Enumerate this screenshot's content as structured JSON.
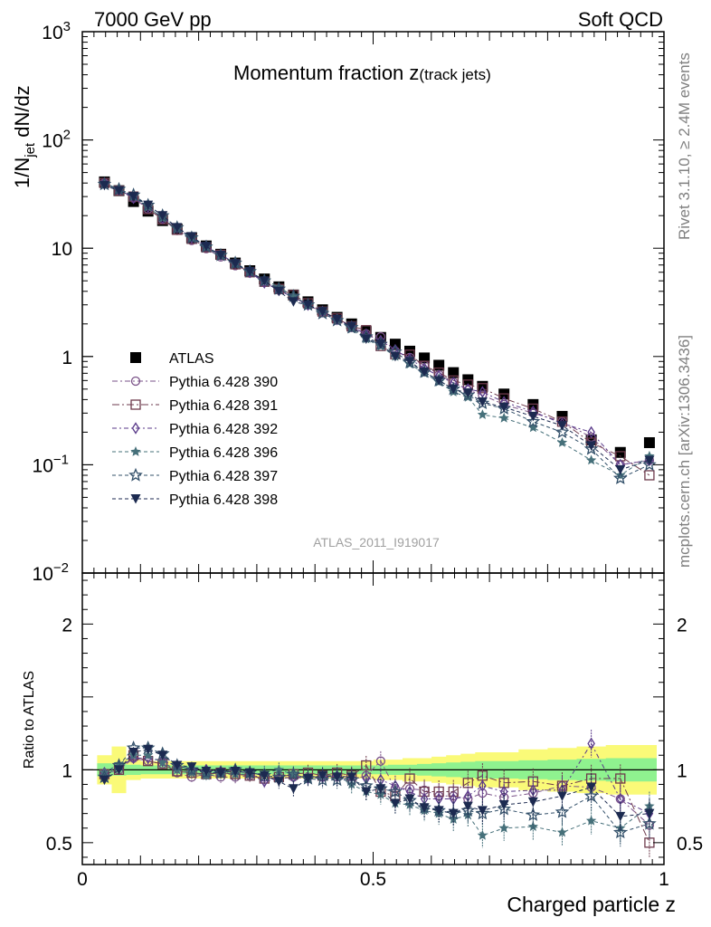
{
  "header": {
    "left": "7000 GeV pp",
    "right": "Soft QCD"
  },
  "side_text": {
    "rivet": "Rivet 3.1.10, ≥ 2.4M events",
    "mcplots": "mcplots.cern.ch [arXiv:1306.3436]"
  },
  "analysis_id": "ATLAS_2011_I919017",
  "chart_data": [
    {
      "type": "scatter",
      "panel": "main",
      "title_main": "Momentum fraction z",
      "title_sub": "(track jets)",
      "ylabel": "1/N",
      "ylabel_sub": "jet",
      "ylabel_tail": " dN/dz",
      "xlabel": "Charged particle z",
      "yscale": "log",
      "xlim": [
        0,
        1.0
      ],
      "ylim": [
        0.01,
        1000
      ],
      "y_ticks": [
        {
          "value": 1000,
          "base": "10",
          "exp": "3"
        },
        {
          "value": 100,
          "base": "10",
          "exp": "2"
        },
        {
          "value": 10,
          "base": "10",
          "exp": ""
        },
        {
          "value": 1,
          "base": "1",
          "exp": ""
        },
        {
          "value": 0.1,
          "base": "10",
          "exp": "−1"
        },
        {
          "value": 0.01,
          "base": "10",
          "exp": "−2"
        }
      ],
      "legend_position": "left-middle",
      "x": [
        0.038,
        0.063,
        0.088,
        0.113,
        0.138,
        0.163,
        0.188,
        0.213,
        0.238,
        0.263,
        0.288,
        0.313,
        0.338,
        0.363,
        0.388,
        0.413,
        0.438,
        0.463,
        0.488,
        0.513,
        0.538,
        0.563,
        0.588,
        0.613,
        0.638,
        0.663,
        0.688,
        0.725,
        0.775,
        0.825,
        0.875,
        0.925,
        0.975
      ],
      "series": [
        {
          "name": "ATLAS",
          "marker": "filled-square",
          "color": "#000000",
          "dash": "",
          "values": [
            41,
            34,
            27,
            22,
            18,
            15,
            12.5,
            10.5,
            8.8,
            7.3,
            6.2,
            5.2,
            4.4,
            3.7,
            3.2,
            2.7,
            2.3,
            2.0,
            1.7,
            1.5,
            1.3,
            1.12,
            0.97,
            0.83,
            0.71,
            0.61,
            0.53,
            0.45,
            0.36,
            0.28,
            0.17,
            0.13,
            0.16
          ]
        },
        {
          "name": "Pythia 6.428 390",
          "marker": "open-circle",
          "color": "#7a5288",
          "dash": "6 3 2 3",
          "values": [
            40,
            34,
            29,
            23,
            18.5,
            14.6,
            11.8,
            9.9,
            8.3,
            6.9,
            5.9,
            4.9,
            4.1,
            3.5,
            3.0,
            2.55,
            2.18,
            1.85,
            1.62,
            1.52,
            1.12,
            0.98,
            0.83,
            0.68,
            0.58,
            0.49,
            0.44,
            0.36,
            0.3,
            0.25,
            0.18,
            0.1,
            0.11
          ]
        },
        {
          "name": "Pythia 6.428 391",
          "marker": "open-square",
          "color": "#6e3a4c",
          "dash": "8 3 2 3",
          "values": [
            40,
            34,
            30,
            23,
            18.5,
            14.8,
            12.2,
            10.2,
            8.7,
            7.1,
            6.0,
            4.9,
            4.2,
            3.7,
            3.1,
            2.6,
            2.25,
            1.9,
            1.75,
            1.25,
            1.05,
            1.04,
            0.82,
            0.71,
            0.6,
            0.55,
            0.51,
            0.41,
            0.33,
            0.25,
            0.16,
            0.12,
            0.08
          ]
        },
        {
          "name": "Pythia 6.428 392",
          "marker": "open-diamond",
          "color": "#5a3a8a",
          "dash": "5 3 2 3",
          "values": [
            40,
            35,
            29,
            24,
            19,
            15.5,
            12.5,
            10.5,
            8.7,
            7.3,
            6.0,
            4.8,
            4.1,
            3.5,
            3.0,
            2.6,
            2.2,
            1.9,
            1.6,
            1.4,
            1.15,
            0.95,
            0.78,
            0.66,
            0.57,
            0.5,
            0.47,
            0.38,
            0.31,
            0.24,
            0.2,
            0.1,
            0.11
          ]
        },
        {
          "name": "Pythia 6.428 396",
          "marker": "filled-star",
          "color": "#46707a",
          "dash": "4 3",
          "values": [
            40,
            35,
            30,
            24,
            19,
            15,
            12.3,
            10.1,
            8.5,
            7.1,
            6.0,
            5.1,
            4.4,
            3.6,
            3.0,
            2.6,
            2.2,
            1.8,
            1.45,
            1.24,
            1.0,
            0.85,
            0.7,
            0.58,
            0.47,
            0.42,
            0.29,
            0.27,
            0.22,
            0.16,
            0.11,
            0.08,
            0.12
          ]
        },
        {
          "name": "Pythia 6.428 397",
          "marker": "open-star",
          "color": "#33506a",
          "dash": "4 3",
          "values": [
            39,
            35,
            31,
            25,
            20,
            15.5,
            12.5,
            10.3,
            8.6,
            7.3,
            6.1,
            5.0,
            4.2,
            3.6,
            3.0,
            2.5,
            2.15,
            1.85,
            1.52,
            1.3,
            1.1,
            0.88,
            0.72,
            0.6,
            0.5,
            0.44,
            0.37,
            0.33,
            0.25,
            0.2,
            0.14,
            0.075,
            0.1
          ]
        },
        {
          "name": "Pythia 6.428 398",
          "marker": "filled-triangle-down",
          "color": "#1c2a50",
          "dash": "4 3",
          "values": [
            38,
            34,
            30,
            25,
            20,
            15.5,
            12.8,
            10.4,
            8.6,
            7.2,
            6.1,
            5.0,
            4.0,
            3.2,
            3.0,
            2.6,
            2.2,
            1.9,
            1.45,
            1.3,
            1.0,
            0.9,
            0.72,
            0.6,
            0.5,
            0.46,
            0.38,
            0.34,
            0.28,
            0.23,
            0.15,
            0.09,
            0.11
          ]
        }
      ]
    },
    {
      "type": "scatter",
      "panel": "ratio",
      "ylabel": "Ratio to ATLAS",
      "xlabel": "Charged particle z",
      "xlim": [
        0,
        1.0
      ],
      "ylim": [
        0.35,
        2.35
      ],
      "x_ticks": [
        {
          "value": 0,
          "label": "0"
        },
        {
          "value": 0.5,
          "label": "0.5"
        },
        {
          "value": 1,
          "label": "1"
        }
      ],
      "y_ticks": [
        {
          "value": 2,
          "label": "2"
        },
        {
          "value": 1,
          "label": "1"
        },
        {
          "value": 0.5,
          "label": "0.5"
        }
      ],
      "reference_line": 1,
      "band_colors": {
        "inner": "#8ff28f",
        "outer": "#fafa78"
      },
      "band_inner": [
        0.045,
        0.04,
        0.035,
        0.03,
        0.03,
        0.03,
        0.03,
        0.03,
        0.03,
        0.03,
        0.03,
        0.03,
        0.03,
        0.03,
        0.03,
        0.03,
        0.03,
        0.03,
        0.03,
        0.03,
        0.035,
        0.035,
        0.04,
        0.045,
        0.05,
        0.055,
        0.06,
        0.06,
        0.065,
        0.07,
        0.075,
        0.08,
        0.08
      ],
      "band_outer": [
        0.1,
        0.16,
        0.07,
        0.06,
        0.06,
        0.06,
        0.06,
        0.06,
        0.06,
        0.06,
        0.06,
        0.06,
        0.06,
        0.06,
        0.06,
        0.06,
        0.06,
        0.06,
        0.06,
        0.07,
        0.07,
        0.08,
        0.08,
        0.09,
        0.1,
        0.11,
        0.12,
        0.12,
        0.14,
        0.15,
        0.16,
        0.17,
        0.17
      ],
      "x": [
        0.038,
        0.063,
        0.088,
        0.113,
        0.138,
        0.163,
        0.188,
        0.213,
        0.238,
        0.263,
        0.288,
        0.313,
        0.338,
        0.363,
        0.388,
        0.413,
        0.438,
        0.463,
        0.488,
        0.513,
        0.538,
        0.563,
        0.588,
        0.613,
        0.638,
        0.663,
        0.688,
        0.725,
        0.775,
        0.825,
        0.875,
        0.925,
        0.975
      ],
      "series": [
        {
          "name": "Pythia 6.428 390",
          "values": [
            0.97,
            1.0,
            1.08,
            1.06,
            1.04,
            0.98,
            0.95,
            0.97,
            0.95,
            0.95,
            0.96,
            0.95,
            0.94,
            0.95,
            0.95,
            0.95,
            0.95,
            0.93,
            0.96,
            1.06,
            0.87,
            0.87,
            0.86,
            0.82,
            0.82,
            0.8,
            0.84,
            0.81,
            0.84,
            0.89,
            0.88,
            0.8,
            0.62
          ]
        },
        {
          "name": "Pythia 6.428 391",
          "values": [
            0.97,
            1.0,
            1.1,
            1.06,
            1.04,
            0.99,
            0.98,
            0.97,
            0.98,
            0.97,
            0.96,
            0.94,
            0.95,
            0.97,
            0.98,
            0.96,
            0.98,
            0.96,
            1.03,
            0.85,
            0.82,
            0.94,
            0.85,
            0.85,
            0.85,
            0.91,
            0.96,
            0.91,
            0.92,
            0.89,
            0.94,
            0.94,
            0.5
          ]
        },
        {
          "name": "Pythia 6.428 392",
          "values": [
            0.98,
            1.02,
            1.08,
            1.08,
            1.06,
            1.03,
            1.0,
            1.0,
            0.99,
            1.0,
            0.97,
            0.92,
            0.94,
            0.95,
            0.94,
            0.95,
            0.96,
            0.95,
            0.94,
            0.93,
            0.89,
            0.85,
            0.8,
            0.8,
            0.8,
            0.82,
            0.89,
            0.85,
            0.86,
            0.86,
            1.18,
            0.8,
            0.7
          ]
        },
        {
          "name": "Pythia 6.428 396",
          "values": [
            0.98,
            1.04,
            1.1,
            1.1,
            1.05,
            1.0,
            0.98,
            0.96,
            0.97,
            0.97,
            0.97,
            0.98,
            1.0,
            0.97,
            0.94,
            0.96,
            0.96,
            0.9,
            0.85,
            0.83,
            0.77,
            0.76,
            0.72,
            0.7,
            0.66,
            0.69,
            0.55,
            0.6,
            0.61,
            0.57,
            0.65,
            0.6,
            0.75
          ]
        },
        {
          "name": "Pythia 6.428 397",
          "values": [
            0.95,
            1.03,
            1.15,
            1.15,
            1.11,
            1.03,
            1.0,
            0.98,
            0.98,
            1.0,
            0.98,
            0.96,
            0.95,
            0.97,
            0.94,
            0.93,
            0.93,
            0.93,
            0.89,
            0.87,
            0.85,
            0.79,
            0.74,
            0.72,
            0.7,
            0.72,
            0.7,
            0.73,
            0.69,
            0.71,
            0.82,
            0.57,
            0.63
          ]
        },
        {
          "name": "Pythia 6.428 398",
          "values": [
            0.93,
            1.0,
            1.12,
            1.14,
            1.1,
            1.03,
            1.02,
            0.99,
            0.98,
            0.99,
            0.98,
            0.96,
            0.92,
            0.87,
            0.94,
            0.96,
            0.95,
            0.95,
            0.85,
            0.87,
            0.77,
            0.8,
            0.74,
            0.72,
            0.7,
            0.75,
            0.72,
            0.76,
            0.78,
            0.82,
            0.88,
            0.68,
            0.7
          ]
        }
      ]
    }
  ]
}
